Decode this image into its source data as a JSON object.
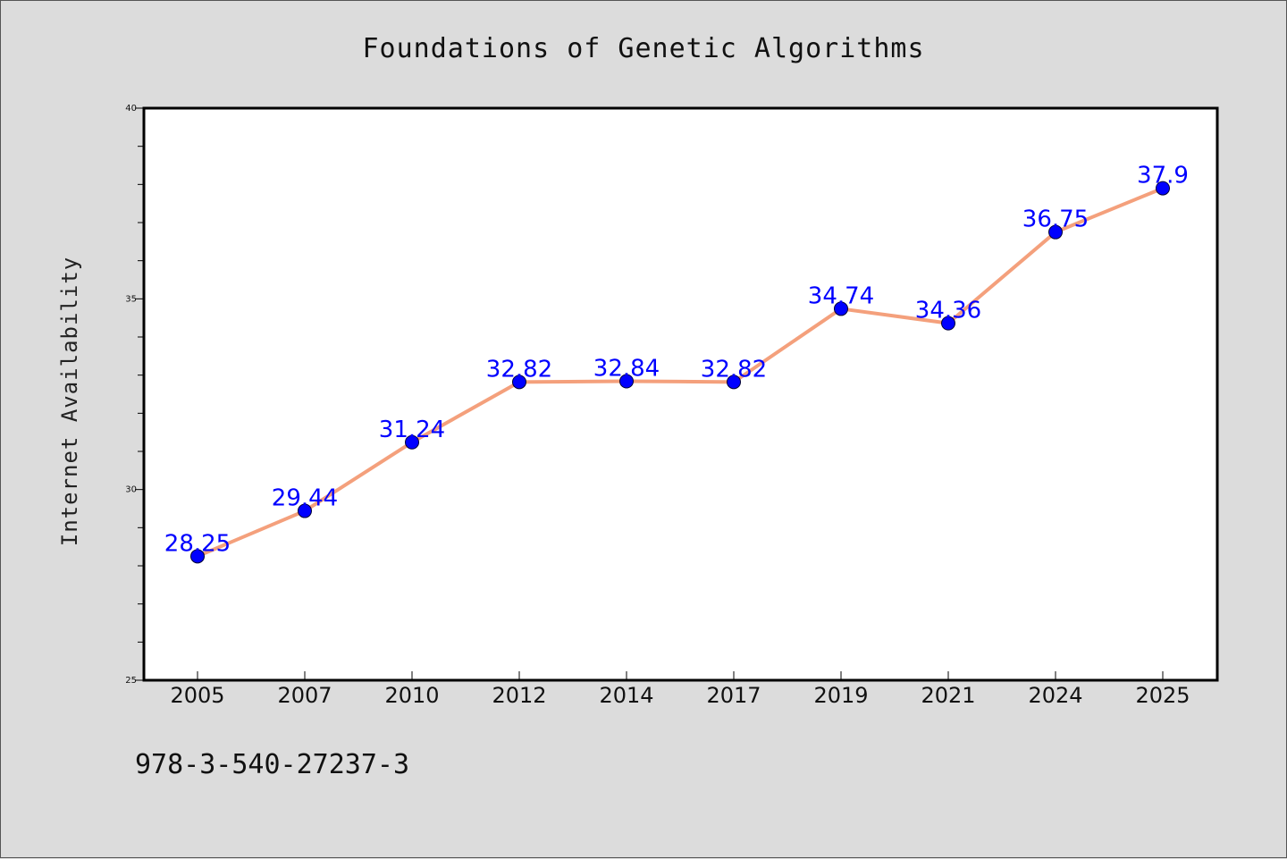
{
  "colors": {
    "background": "#dcdcdc",
    "plot_background": "#ffffff",
    "line": "#f4a07c",
    "marker": "#0000ff",
    "data_label": "#0000ff",
    "axis": "#000000"
  },
  "footer": {
    "code": "978-3-540-27237-3"
  },
  "chart_data": {
    "type": "line",
    "title": "Foundations of Genetic Algorithms",
    "xlabel": "",
    "ylabel": "Internet Availability",
    "categories": [
      "2005",
      "2007",
      "2010",
      "2012",
      "2014",
      "2017",
      "2019",
      "2021",
      "2024",
      "2025"
    ],
    "series": [
      {
        "values": [
          28.25,
          29.44,
          31.24,
          32.82,
          32.84,
          32.82,
          34.74,
          34.36,
          36.75,
          37.9
        ],
        "labels": [
          "28.25",
          "29.44",
          "31.24",
          "32.82",
          "32.84",
          "32.82",
          "34.74",
          "34.36",
          "36.75",
          "37.9"
        ]
      }
    ],
    "ylim": [
      25,
      40
    ],
    "yticks_major": [
      25,
      30,
      35,
      40
    ],
    "ytick_labels": [
      "25",
      "30",
      "35",
      "40"
    ],
    "ytick_minor_step": 1,
    "grid": false,
    "legend": "none"
  }
}
